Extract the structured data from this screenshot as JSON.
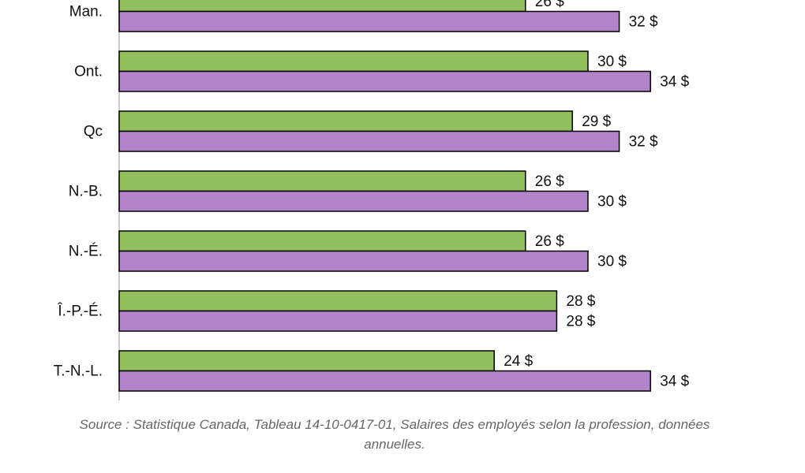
{
  "chart_data": {
    "type": "bar",
    "orientation": "horizontal",
    "categories": [
      "Man.",
      "Ont.",
      "Qc",
      "N.-B.",
      "N.-É.",
      "Î.-P.-É.",
      "T.-N.-L."
    ],
    "series": [
      {
        "color": "#92c05f",
        "values": [
          26,
          30,
          29,
          26,
          26,
          28,
          24
        ],
        "value_labels": [
          "26 $",
          "30 $",
          "29 $",
          "26 $",
          "26 $",
          "28 $",
          "24 $"
        ]
      },
      {
        "color": "#b383c9",
        "values": [
          32,
          34,
          32,
          30,
          30,
          28,
          34
        ],
        "value_labels": [
          "32 $",
          "34 $",
          "32 $",
          "30 $",
          "30 $",
          "28 $",
          "34 $"
        ]
      }
    ],
    "source": "Source : Statistique Canada, Tableau 14-10-0417-01, Salaires des employés selon la profession, données annuelles."
  }
}
